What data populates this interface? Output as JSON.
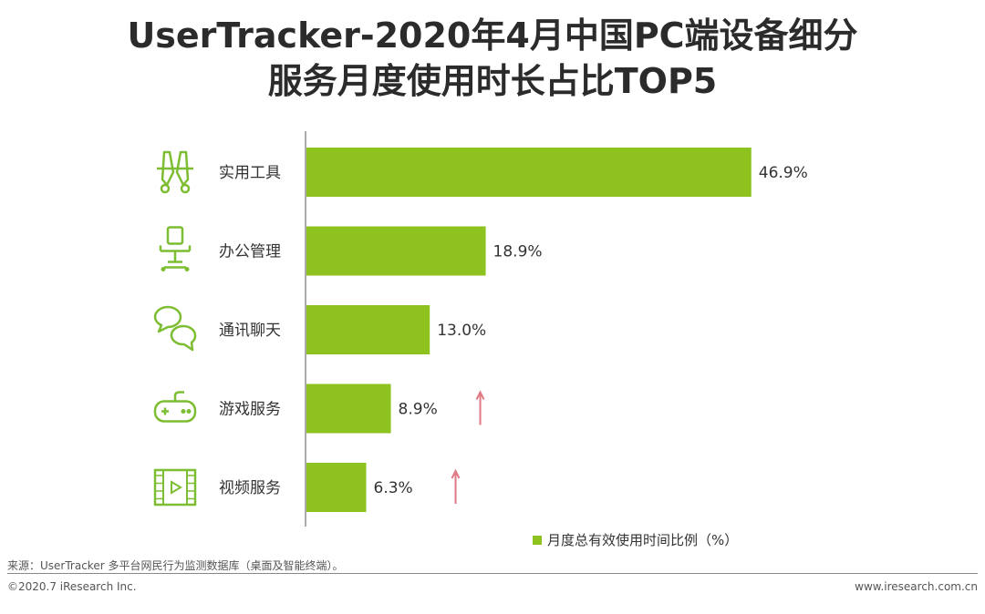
{
  "title_line1": "UserTracker-2020年4月中国PC端设备细分",
  "title_line2": "服务月度使用时长占比TOP5",
  "chart_data": {
    "type": "bar",
    "orientation": "horizontal",
    "categories": [
      "实用工具",
      "办公管理",
      "通讯聊天",
      "游戏服务",
      "视频服务"
    ],
    "icons": [
      "tools-icon",
      "office-chair-icon",
      "chat-bubbles-icon",
      "gamepad-icon",
      "film-icon"
    ],
    "values": [
      46.9,
      18.9,
      13.0,
      8.9,
      6.3
    ],
    "value_labels": [
      "46.9%",
      "18.9%",
      "13.0%",
      "8.9%",
      "6.3%"
    ],
    "trend_up": [
      false,
      false,
      false,
      true,
      true
    ],
    "xlim": [
      0,
      50
    ],
    "series_name": "月度总有效使用时间比例（%）",
    "bar_color": "#8dc21f",
    "icon_color": "#7cbd32",
    "arrow_color": "#e07a84",
    "legend_position": "bottom-right"
  },
  "footer": {
    "source": "来源：UserTracker 多平台网民行为监测数据库（桌面及智能终端）。",
    "copyright": "©2020.7 iResearch Inc.",
    "website": "www.iresearch.com.cn"
  }
}
